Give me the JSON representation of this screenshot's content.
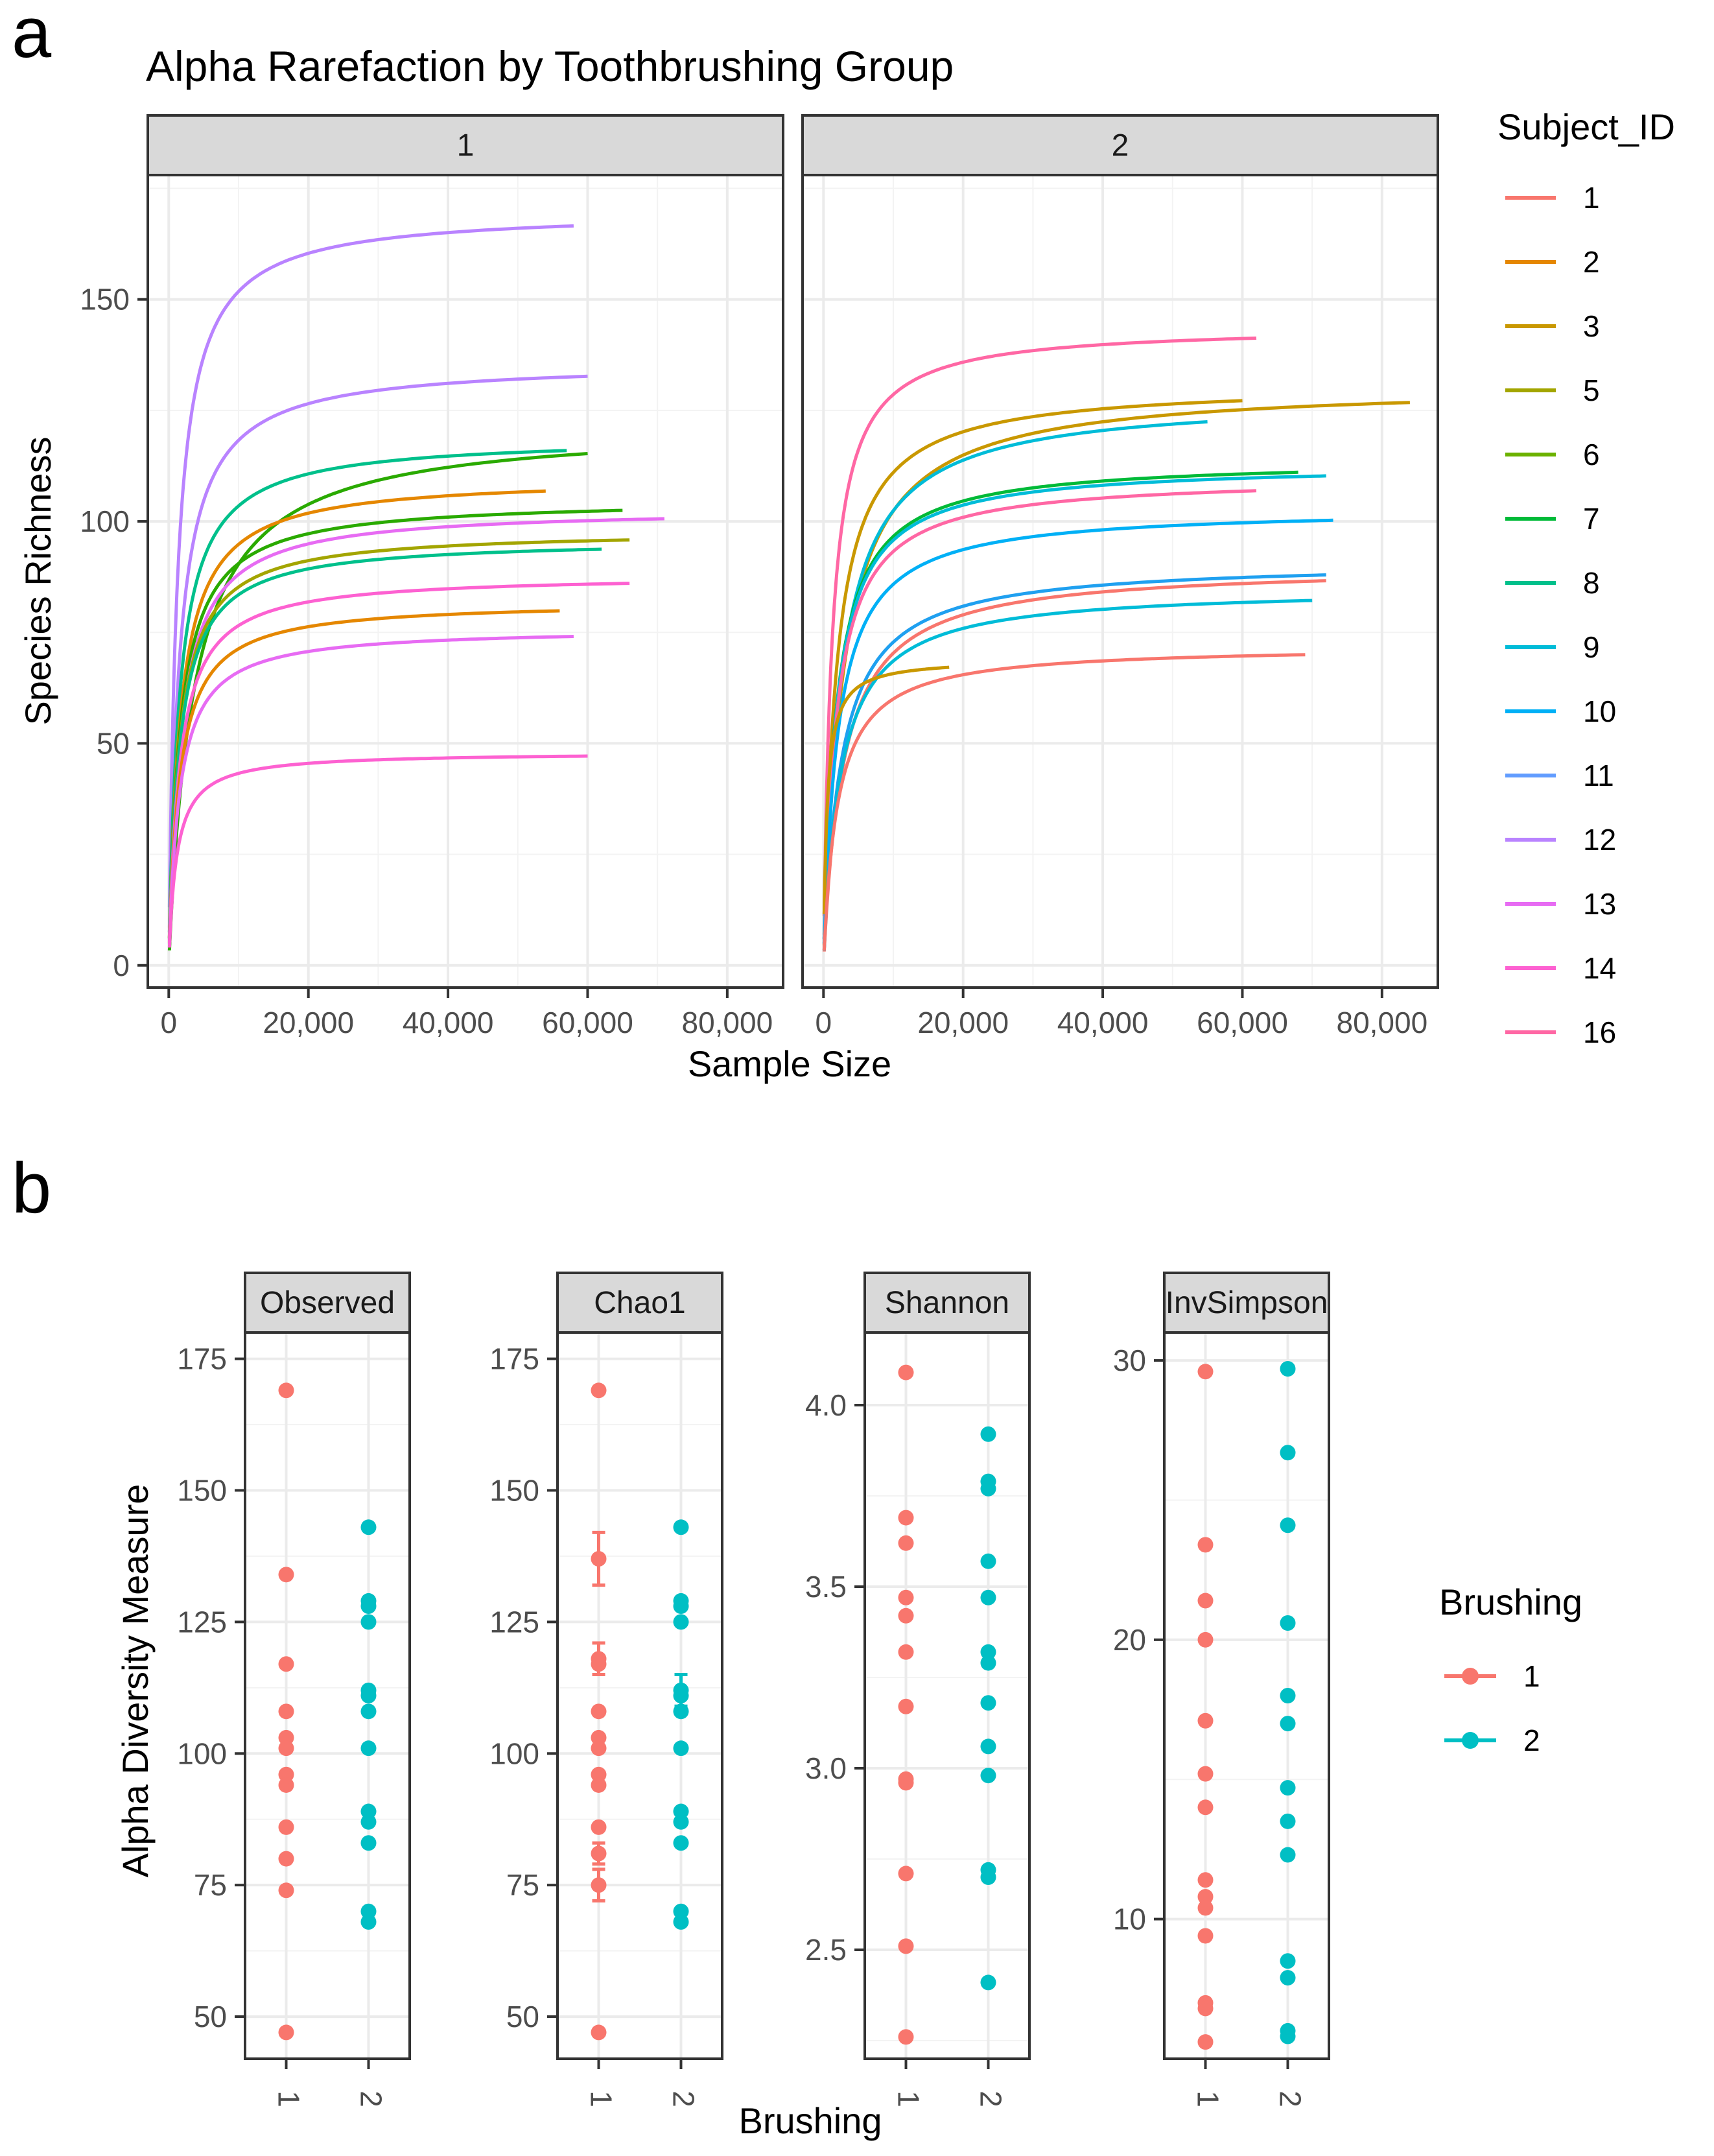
{
  "figure_labels": {
    "a": "a",
    "b": "b"
  },
  "chart_data": [
    {
      "type": "line",
      "panel": "a",
      "title": "Alpha Rarefaction by Toothbrushing Group",
      "xlabel": "Sample Size",
      "ylabel": "Species Richness",
      "facets": [
        "1",
        "2"
      ],
      "xlim": [
        -3000,
        88000
      ],
      "ylim": [
        -5,
        178
      ],
      "xticks": [
        0,
        20000,
        40000,
        60000,
        80000
      ],
      "xtick_labels": [
        "0",
        "20,000",
        "40,000",
        "60,000",
        "80,000"
      ],
      "yticks": [
        0,
        50,
        100,
        150
      ],
      "ytick_labels": [
        "0",
        "50",
        "100",
        "150"
      ],
      "legend_title": "Subject_ID",
      "legend": [
        {
          "id": "1",
          "color": "#F8766D"
        },
        {
          "id": "2",
          "color": "#E58700"
        },
        {
          "id": "3",
          "color": "#C99800"
        },
        {
          "id": "5",
          "color": "#A3A500"
        },
        {
          "id": "6",
          "color": "#6BB100"
        },
        {
          "id": "7",
          "color": "#00BA38"
        },
        {
          "id": "8",
          "color": "#00C08B"
        },
        {
          "id": "9",
          "color": "#00BCD8"
        },
        {
          "id": "10",
          "color": "#00B0F6"
        },
        {
          "id": "11",
          "color": "#619CFF"
        },
        {
          "id": "12",
          "color": "#B983FF"
        },
        {
          "id": "13",
          "color": "#E76BF3"
        },
        {
          "id": "14",
          "color": "#FD61D1"
        },
        {
          "id": "16",
          "color": "#FF67A4"
        }
      ],
      "series": [
        {
          "facet": "1",
          "subject": "12",
          "color": "#B983FF",
          "max_depth": 58000,
          "asymptote": 170,
          "half_sat": 1200
        },
        {
          "facet": "1",
          "subject": "12",
          "color": "#B983FF",
          "max_depth": 60000,
          "asymptote": 136,
          "half_sat": 1500
        },
        {
          "facet": "1",
          "subject": "8",
          "color": "#00C08B",
          "max_depth": 57000,
          "asymptote": 119,
          "half_sat": 1500
        },
        {
          "facet": "1",
          "subject": "6",
          "color": "#2AAA00",
          "max_depth": 60000,
          "asymptote": 122,
          "half_sat": 3500
        },
        {
          "facet": "1",
          "subject": "2",
          "color": "#E58700",
          "max_depth": 54000,
          "asymptote": 110,
          "half_sat": 1600
        },
        {
          "facet": "1",
          "subject": "6",
          "color": "#2AAA00",
          "max_depth": 65000,
          "asymptote": 105,
          "half_sat": 1600
        },
        {
          "facet": "1",
          "subject": "13",
          "color": "#E76BF3",
          "max_depth": 71000,
          "asymptote": 103,
          "half_sat": 1700
        },
        {
          "facet": "1",
          "subject": "5",
          "color": "#A3A500",
          "max_depth": 66000,
          "asymptote": 98,
          "half_sat": 1500
        },
        {
          "facet": "1",
          "subject": "8",
          "color": "#00C08B",
          "max_depth": 62000,
          "asymptote": 96,
          "half_sat": 1500
        },
        {
          "facet": "1",
          "subject": "14",
          "color": "#FD61D1",
          "max_depth": 66000,
          "asymptote": 88,
          "half_sat": 1500
        },
        {
          "facet": "1",
          "subject": "2",
          "color": "#E58700",
          "max_depth": 56000,
          "asymptote": 82,
          "half_sat": 1500
        },
        {
          "facet": "1",
          "subject": "13",
          "color": "#E76BF3",
          "max_depth": 58000,
          "asymptote": 76,
          "half_sat": 1500
        },
        {
          "facet": "1",
          "subject": "14",
          "color": "#FD61D1",
          "max_depth": 60000,
          "asymptote": 48,
          "half_sat": 1100
        },
        {
          "facet": "2",
          "subject": "16",
          "color": "#FF67A4",
          "max_depth": 62000,
          "asymptote": 144,
          "half_sat": 1200
        },
        {
          "facet": "2",
          "subject": "3",
          "color": "#C99800",
          "max_depth": 60000,
          "asymptote": 131,
          "half_sat": 1800
        },
        {
          "facet": "2",
          "subject": "3",
          "color": "#C99800",
          "max_depth": 84000,
          "asymptote": 131,
          "half_sat": 2800
        },
        {
          "facet": "2",
          "subject": "9",
          "color": "#00BCD8",
          "max_depth": 55000,
          "asymptote": 128,
          "half_sat": 2500
        },
        {
          "facet": "2",
          "subject": "7",
          "color": "#00BA38",
          "max_depth": 68000,
          "asymptote": 114,
          "half_sat": 1800
        },
        {
          "facet": "2",
          "subject": "9",
          "color": "#00BCD8",
          "max_depth": 72000,
          "asymptote": 113,
          "half_sat": 1800
        },
        {
          "facet": "2",
          "subject": "16",
          "color": "#FF67A4",
          "max_depth": 62000,
          "asymptote": 110,
          "half_sat": 1800
        },
        {
          "facet": "2",
          "subject": "10",
          "color": "#00B0F6",
          "max_depth": 73000,
          "asymptote": 103,
          "half_sat": 2000
        },
        {
          "facet": "2",
          "subject": "11",
          "color": "#1FA0F0",
          "max_depth": 72000,
          "asymptote": 91,
          "half_sat": 2500
        },
        {
          "facet": "2",
          "subject": "1",
          "color": "#F8766D",
          "max_depth": 72000,
          "asymptote": 90,
          "half_sat": 2800
        },
        {
          "facet": "2",
          "subject": "9",
          "color": "#00BCD8",
          "max_depth": 70000,
          "asymptote": 85,
          "half_sat": 2400
        },
        {
          "facet": "2",
          "subject": "3",
          "color": "#C99800",
          "max_depth": 18000,
          "asymptote": 69,
          "half_sat": 500
        },
        {
          "facet": "2",
          "subject": "1",
          "color": "#F8766D",
          "max_depth": 69000,
          "asymptote": 72,
          "half_sat": 2000
        }
      ]
    },
    {
      "type": "scatter",
      "panel": "b",
      "xlabel": "Brushing",
      "ylabel": "Alpha Diversity Measure",
      "x_categories": [
        "1",
        "2"
      ],
      "legend_title": "Brushing",
      "legend": [
        {
          "label": "1",
          "color": "#F8766D"
        },
        {
          "label": "2",
          "color": "#00BFC4"
        }
      ],
      "facets": [
        {
          "name": "Observed",
          "ylim": [
            42,
            180
          ],
          "yticks": [
            50,
            75,
            100,
            125,
            150,
            175
          ],
          "ytick_labels": [
            "50",
            "75",
            "100",
            "125",
            "150",
            "175"
          ],
          "group1": [
            169,
            134,
            117,
            108,
            103,
            101,
            96,
            94,
            86,
            80,
            74,
            47
          ],
          "group2": [
            143,
            129,
            128,
            125,
            112,
            111,
            108,
            101,
            89,
            87,
            83,
            70,
            68
          ]
        },
        {
          "name": "Chao1",
          "ylim": [
            42,
            180
          ],
          "yticks": [
            50,
            75,
            100,
            125,
            150,
            175
          ],
          "ytick_labels": [
            "50",
            "75",
            "100",
            "125",
            "150",
            "175"
          ],
          "group1": [
            169,
            137,
            118,
            117,
            108,
            103,
            101,
            96,
            94,
            86,
            81,
            75,
            47
          ],
          "group1_errors": [
            0,
            5,
            3,
            0,
            0,
            0,
            0,
            0,
            0,
            0,
            2,
            3,
            0
          ],
          "group2": [
            143,
            129,
            128,
            125,
            112,
            111,
            108,
            101,
            89,
            87,
            83,
            70,
            68
          ],
          "group2_errors": [
            0,
            0,
            0,
            0,
            3,
            0,
            0,
            0,
            0,
            0,
            0,
            0,
            0
          ]
        },
        {
          "name": "Shannon",
          "ylim": [
            2.2,
            4.2
          ],
          "yticks": [
            2.5,
            3.0,
            3.5,
            4.0
          ],
          "ytick_labels": [
            "2.5",
            "3.0",
            "3.5",
            "4.0"
          ],
          "group1": [
            4.09,
            3.69,
            3.62,
            3.47,
            3.42,
            3.32,
            3.17,
            2.97,
            2.96,
            2.71,
            2.51,
            2.26
          ],
          "group2": [
            3.92,
            3.79,
            3.77,
            3.57,
            3.47,
            3.32,
            3.29,
            3.18,
            3.06,
            2.98,
            2.72,
            2.7,
            2.41
          ]
        },
        {
          "name": "InvSimpson",
          "ylim": [
            5,
            31
          ],
          "yticks": [
            10,
            20,
            30
          ],
          "ytick_labels": [
            "10",
            "20",
            "30"
          ],
          "group1": [
            29.6,
            23.4,
            21.4,
            20.0,
            17.1,
            15.2,
            14.0,
            11.4,
            10.8,
            10.4,
            9.4,
            7.0,
            6.8,
            5.6
          ],
          "group2": [
            29.7,
            26.7,
            24.1,
            20.6,
            18.0,
            17.0,
            14.7,
            13.5,
            12.3,
            8.5,
            7.9,
            6.0,
            5.8
          ]
        }
      ]
    }
  ]
}
